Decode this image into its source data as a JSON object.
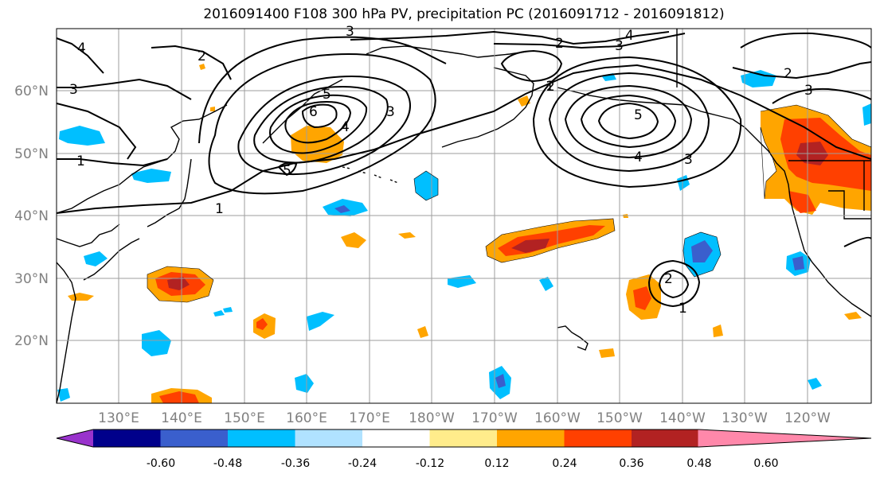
{
  "title": "2016091400 F108 300 hPa PV, precipitation PC (2016091712 - 2016091812)",
  "lat_labels": [
    "60°N",
    "50°N",
    "40°N",
    "30°N",
    "20°N"
  ],
  "lon_labels": [
    "130°E",
    "140°E",
    "150°E",
    "160°E",
    "170°E",
    "180°W",
    "170°W",
    "160°W",
    "150°W",
    "140°W",
    "130°W",
    "120°W"
  ],
  "colorbar": {
    "colors": [
      "#9933cc",
      "#00008b",
      "#3a5fcd",
      "#00bfff",
      "#b0e2ff",
      "#ffffff",
      "#ffec8b",
      "#ffa500",
      "#ff4000",
      "#b22222",
      "#ff88aa"
    ],
    "labels": [
      "-0.60",
      "-0.48",
      "-0.36",
      "-0.24",
      "-0.12",
      "0.12",
      "0.24",
      "0.36",
      "0.48",
      "0.60"
    ]
  },
  "contour_labels": [
    "4",
    "3",
    "2",
    "1",
    "1",
    "5",
    "4",
    "3",
    "6",
    "5",
    "3",
    "2",
    "4",
    "3",
    "2",
    "1",
    "5",
    "4",
    "3",
    "2",
    "3",
    "2",
    "1"
  ]
}
